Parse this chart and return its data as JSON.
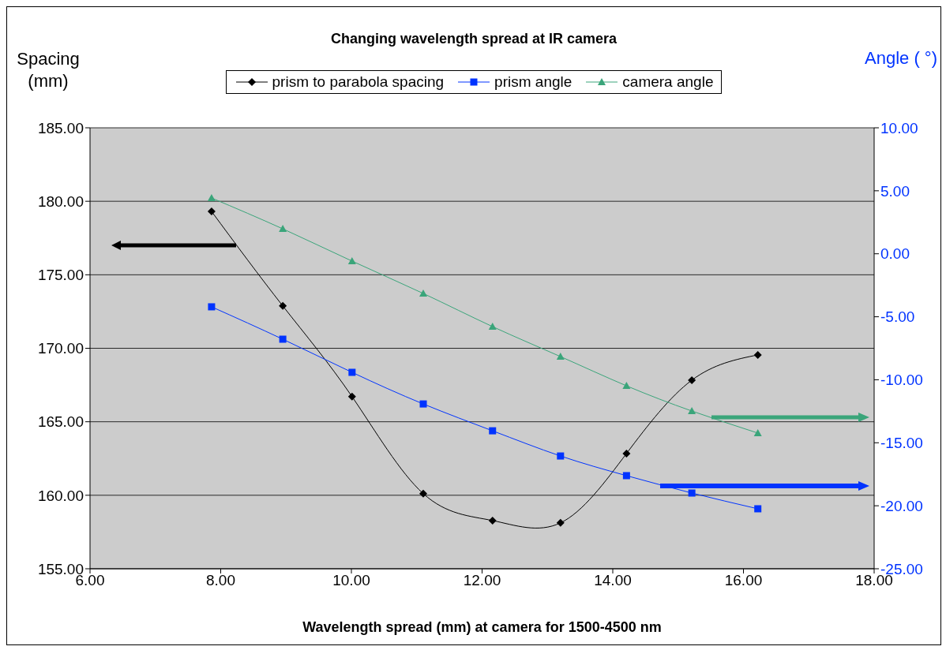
{
  "chart_data": {
    "type": "line",
    "title": "Changing wavelength spread at IR camera",
    "xlabel": "Wavelength spread (mm) at camera for 1500-4500 nm",
    "ylabel": "Spacing (mm)",
    "y2label": "Angle ( °)",
    "x": [
      7.86,
      8.95,
      10.01,
      11.1,
      12.16,
      13.2,
      14.21,
      15.21,
      16.22
    ],
    "series": [
      {
        "name": "prism to parabola spacing",
        "color": "#000000",
        "marker": "diamond",
        "values": [
          179.31,
          172.88,
          166.71,
          160.11,
          158.28,
          158.12,
          162.84,
          167.83,
          169.55
        ]
      },
      {
        "name": "prism angle",
        "color": "#0033ff",
        "marker": "square",
        "axis": "y2",
        "values": [
          -4.21,
          -6.78,
          -9.41,
          -11.92,
          -14.05,
          -16.05,
          -17.61,
          -18.99,
          -20.24
        ]
      },
      {
        "name": "camera angle",
        "color": "#3aa57a",
        "marker": "triangle",
        "axis": "y2",
        "values": [
          4.43,
          1.98,
          -0.58,
          -3.15,
          -5.78,
          -8.16,
          -10.48,
          -12.48,
          -14.23
        ]
      }
    ],
    "xlim": [
      6,
      18
    ],
    "xticks": [
      {
        "value": 6,
        "label": "6.00"
      },
      {
        "value": 8,
        "label": "8.00"
      },
      {
        "value": 10,
        "label": "10.00"
      },
      {
        "value": 12,
        "label": "12.00"
      },
      {
        "value": 14,
        "label": "14.00"
      },
      {
        "value": 16,
        "label": "16.00"
      },
      {
        "value": 18,
        "label": "18.00"
      }
    ],
    "ylim": [
      155,
      185
    ],
    "yticks": [
      {
        "value": 155,
        "label": "155.00"
      },
      {
        "value": 160,
        "label": "160.00"
      },
      {
        "value": 165,
        "label": "165.00"
      },
      {
        "value": 170,
        "label": "170.00"
      },
      {
        "value": 175,
        "label": "175.00"
      },
      {
        "value": 180,
        "label": "180.00"
      },
      {
        "value": 185,
        "label": "185.00"
      }
    ],
    "y2lim": [
      -25,
      10
    ],
    "y2ticks": [
      {
        "value": -25,
        "label": "-25.00"
      },
      {
        "value": -20,
        "label": "-20.00"
      },
      {
        "value": -15,
        "label": "-15.00"
      },
      {
        "value": -10,
        "label": "-10.00"
      },
      {
        "value": -5,
        "label": "-5.00"
      },
      {
        "value": 0,
        "label": "0.00"
      },
      {
        "value": 5,
        "label": "5.00"
      },
      {
        "value": 10,
        "label": "10.00"
      }
    ],
    "grid": "y",
    "legend": "top"
  }
}
